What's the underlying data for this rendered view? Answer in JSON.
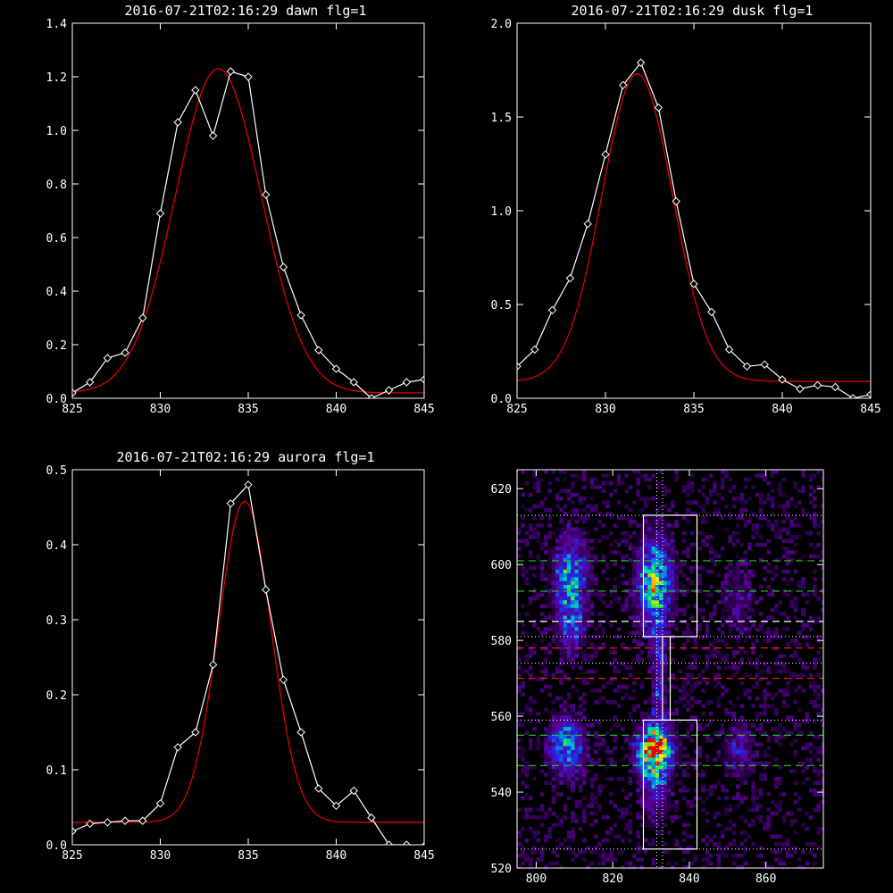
{
  "colors": {
    "background": "#000000",
    "axes": "#ffffff",
    "data_line": "#ffffff",
    "fit_line": "#e00000",
    "green_dash": "#22cc22",
    "red_dash": "#dd2222",
    "white_dash": "#ffffff"
  },
  "chart_data": [
    {
      "type": "line",
      "title": "2016-07-21T02:16:29 dawn flg=1",
      "xlim": [
        825,
        845
      ],
      "ylim": [
        0,
        1.4
      ],
      "xticks": [
        "825",
        "830",
        "835",
        "840",
        "845"
      ],
      "yticks": [
        "0.0",
        "0.2",
        "0.4",
        "0.6",
        "0.8",
        "1.0",
        "1.2",
        "1.4"
      ],
      "series": [
        {
          "style": "white-line-diamonds",
          "x": [
            825,
            826,
            827,
            828,
            829,
            830,
            831,
            832,
            833,
            834,
            835,
            836,
            837,
            838,
            839,
            840,
            841,
            842,
            843,
            844,
            845
          ],
          "y": [
            0.02,
            0.06,
            0.15,
            0.17,
            0.3,
            0.69,
            1.03,
            1.15,
            0.98,
            1.22,
            1.2,
            0.76,
            0.49,
            0.31,
            0.18,
            0.11,
            0.06,
            0.0,
            0.03,
            0.06,
            0.07
          ]
        },
        {
          "style": "red-gaussian-fit",
          "gauss": {
            "amplitude": 1.21,
            "center": 833.3,
            "sigma": 2.45,
            "offset": 0.02
          }
        }
      ]
    },
    {
      "type": "line",
      "title": "2016-07-21T02:16:29 dusk flg=1",
      "xlim": [
        825,
        845
      ],
      "ylim": [
        0,
        2.0
      ],
      "xticks": [
        "825",
        "830",
        "835",
        "840",
        "845"
      ],
      "yticks": [
        "0.0",
        "0.5",
        "1.0",
        "1.5",
        "2.0"
      ],
      "series": [
        {
          "style": "white-line-diamonds",
          "x": [
            825,
            826,
            827,
            828,
            829,
            830,
            831,
            832,
            833,
            834,
            835,
            836,
            837,
            838,
            839,
            840,
            841,
            842,
            843,
            844,
            845
          ],
          "y": [
            0.17,
            0.26,
            0.47,
            0.64,
            0.93,
            1.3,
            1.67,
            1.79,
            1.55,
            1.05,
            0.61,
            0.46,
            0.26,
            0.17,
            0.18,
            0.1,
            0.05,
            0.07,
            0.06,
            0.0,
            0.02
          ]
        },
        {
          "style": "red-gaussian-fit",
          "gauss": {
            "amplitude": 1.64,
            "center": 831.8,
            "sigma": 2.0,
            "offset": 0.09
          }
        }
      ]
    },
    {
      "type": "line",
      "title": "2016-07-21T02:16:29 aurora flg=1",
      "xlim": [
        825,
        845
      ],
      "ylim": [
        0,
        0.5
      ],
      "xticks": [
        "825",
        "830",
        "835",
        "840",
        "845"
      ],
      "yticks": [
        "0.0",
        "0.1",
        "0.2",
        "0.3",
        "0.4",
        "0.5"
      ],
      "series": [
        {
          "style": "white-line-diamonds",
          "x": [
            825,
            826,
            827,
            828,
            829,
            830,
            831,
            832,
            833,
            834,
            835,
            836,
            837,
            838,
            839,
            840,
            841,
            842,
            843,
            844,
            845
          ],
          "y": [
            0.018,
            0.028,
            0.03,
            0.032,
            0.032,
            0.055,
            0.13,
            0.15,
            0.24,
            0.455,
            0.48,
            0.34,
            0.22,
            0.15,
            0.075,
            0.052,
            0.072,
            0.036,
            0.0,
            0.0,
            -0.002
          ]
        },
        {
          "style": "red-gaussian-fit",
          "gauss": {
            "amplitude": 0.428,
            "center": 834.8,
            "sigma": 1.5,
            "offset": 0.03
          }
        }
      ]
    },
    {
      "type": "heatmap",
      "title": "",
      "xlim": [
        795,
        875
      ],
      "ylim": [
        520,
        625
      ],
      "xticks": [
        "800",
        "820",
        "840",
        "860"
      ],
      "yticks": [
        "520",
        "540",
        "560",
        "580",
        "600",
        "620"
      ],
      "blobs": [
        {
          "x": 809,
          "y": 597,
          "sx": 3,
          "sy": 7,
          "amp": 0.45
        },
        {
          "x": 809,
          "y": 585,
          "sx": 2.5,
          "sy": 6,
          "amp": 0.28
        },
        {
          "x": 808,
          "y": 552,
          "sx": 3,
          "sy": 5,
          "amp": 0.5
        },
        {
          "x": 831,
          "y": 595,
          "sx": 3,
          "sy": 8,
          "amp": 0.65
        },
        {
          "x": 831,
          "y": 551,
          "sx": 2.8,
          "sy": 4.5,
          "amp": 1.0
        },
        {
          "x": 831,
          "y": 541,
          "sx": 2.5,
          "sy": 6,
          "amp": 0.25
        },
        {
          "x": 853,
          "y": 551,
          "sx": 2.5,
          "sy": 5,
          "amp": 0.22
        },
        {
          "x": 853,
          "y": 590,
          "sx": 3,
          "sy": 8,
          "amp": 0.12
        },
        {
          "x": 832,
          "y": 570,
          "sx": 1.2,
          "sy": 10,
          "amp": 0.3
        }
      ],
      "boxes": [
        {
          "x0": 828,
          "x1": 842,
          "y0": 581,
          "y1": 613
        },
        {
          "x0": 828,
          "x1": 842,
          "y0": 525,
          "y1": 559
        },
        {
          "x0": 833,
          "x1": 835,
          "y0": 559,
          "y1": 581
        }
      ],
      "dotted_h": [
        613,
        581,
        574,
        559,
        525
      ],
      "dotted_v": [
        831.5,
        833
      ],
      "green_dash_h": [
        601,
        593,
        555,
        547
      ],
      "white_dash_h": [
        585
      ],
      "red_dash_h": [
        578,
        570
      ]
    }
  ]
}
